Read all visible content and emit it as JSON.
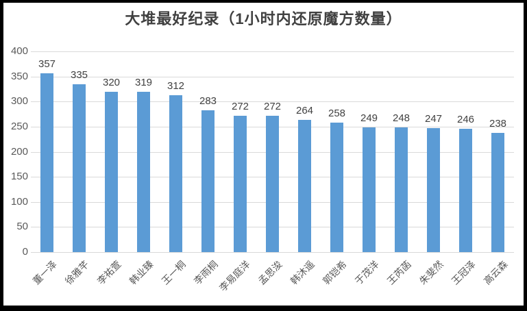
{
  "chart_data": {
    "type": "bar",
    "title": "大堆最好纪录（1小时内还原魔方数量）",
    "categories": [
      "董一泽",
      "徐雅芊",
      "李祐萱",
      "韩业臻",
      "王一桐",
      "李雨桐",
      "李易庭洋",
      "孟思浚",
      "韩沐遥",
      "郭铠希",
      "于茂洋",
      "王芮菡",
      "朱斐然",
      "王冠泽",
      "高云森"
    ],
    "values": [
      357,
      335,
      320,
      319,
      312,
      283,
      272,
      272,
      264,
      258,
      249,
      248,
      247,
      246,
      238
    ],
    "xlabel": "",
    "ylabel": "",
    "ylim": [
      0,
      400
    ],
    "ytick_step": 50,
    "yticks": [
      400,
      350,
      300,
      250,
      200,
      150,
      100,
      50,
      0
    ],
    "grid": true,
    "legend": "none",
    "data_labels": true,
    "colors": {
      "bar": "#5B9BD5",
      "gridline": "#D9D9D9",
      "title_text": "#404040",
      "value_label_text": "#404040",
      "axis_text": "#595959",
      "frame_border": "#000000",
      "background": "#FFFFFF"
    }
  }
}
